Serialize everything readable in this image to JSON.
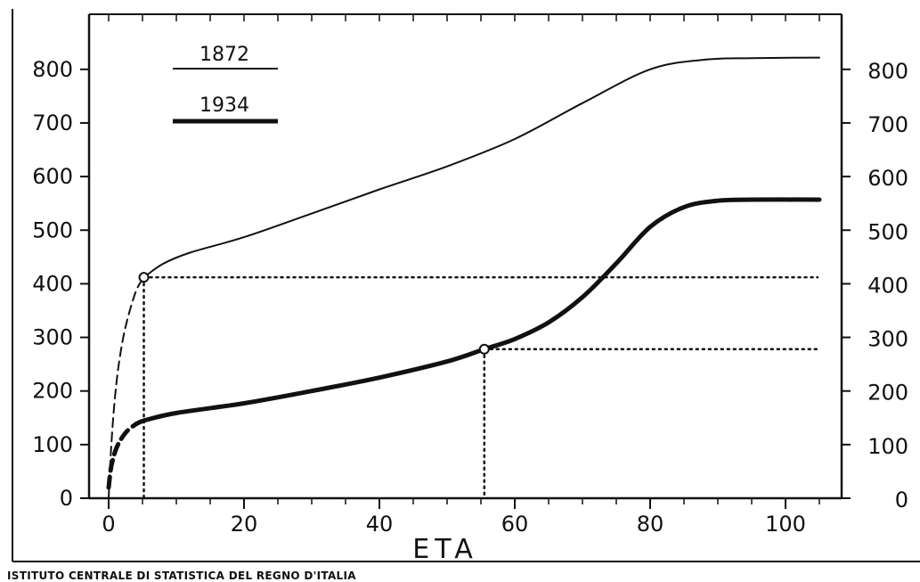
{
  "footer": {
    "credit": "ISTITUTO CENTRALE DI STATISTICA DEL REGNO D'ITALIA"
  },
  "chart_data": {
    "type": "line",
    "title": "",
    "xlabel": "ETA",
    "ylabel": "",
    "xlim": [
      0,
      105
    ],
    "ylim": [
      0,
      850
    ],
    "x_ticks": [
      0,
      20,
      40,
      60,
      80,
      100
    ],
    "y_ticks": [
      0,
      100,
      200,
      300,
      400,
      500,
      600,
      700,
      800
    ],
    "secondary_y_axis": true,
    "grid": false,
    "legend_position": "top-left",
    "colors": {
      "ink": "#111111",
      "paper": "#ffffff"
    },
    "series": [
      {
        "name": "1872",
        "line_weight": "thin",
        "dashed_segment": [
          {
            "x": 0,
            "y": 0
          },
          {
            "x": 0.3,
            "y": 80
          },
          {
            "x": 0.8,
            "y": 170
          },
          {
            "x": 1.5,
            "y": 250
          },
          {
            "x": 2.5,
            "y": 320
          },
          {
            "x": 4,
            "y": 385
          },
          {
            "x": 5.2,
            "y": 412
          }
        ],
        "solid_segment": [
          {
            "x": 5.2,
            "y": 412
          },
          {
            "x": 8,
            "y": 437
          },
          {
            "x": 12,
            "y": 458
          },
          {
            "x": 20,
            "y": 487
          },
          {
            "x": 30,
            "y": 531
          },
          {
            "x": 40,
            "y": 576
          },
          {
            "x": 50,
            "y": 619
          },
          {
            "x": 60,
            "y": 670
          },
          {
            "x": 70,
            "y": 737
          },
          {
            "x": 80,
            "y": 800
          },
          {
            "x": 88,
            "y": 818
          },
          {
            "x": 95,
            "y": 821
          },
          {
            "x": 105,
            "y": 822
          }
        ],
        "marker": {
          "x": 5.2,
          "y": 412
        },
        "reference_line_y": 412
      },
      {
        "name": "1934",
        "line_weight": "thick",
        "dashed_segment": [
          {
            "x": 0,
            "y": 20
          },
          {
            "x": 0.4,
            "y": 60
          },
          {
            "x": 1.2,
            "y": 95
          },
          {
            "x": 2.5,
            "y": 122
          },
          {
            "x": 4,
            "y": 138
          },
          {
            "x": 5.2,
            "y": 145
          }
        ],
        "solid_segment": [
          {
            "x": 5.2,
            "y": 145
          },
          {
            "x": 10,
            "y": 159
          },
          {
            "x": 20,
            "y": 177
          },
          {
            "x": 30,
            "y": 200
          },
          {
            "x": 40,
            "y": 225
          },
          {
            "x": 50,
            "y": 255
          },
          {
            "x": 55.5,
            "y": 278
          },
          {
            "x": 60,
            "y": 297
          },
          {
            "x": 65,
            "y": 328
          },
          {
            "x": 70,
            "y": 375
          },
          {
            "x": 75,
            "y": 438
          },
          {
            "x": 80,
            "y": 506
          },
          {
            "x": 85,
            "y": 543
          },
          {
            "x": 90,
            "y": 555
          },
          {
            "x": 95,
            "y": 557
          },
          {
            "x": 105,
            "y": 557
          }
        ],
        "marker": {
          "x": 55.5,
          "y": 278
        },
        "reference_line_y": 278
      }
    ]
  }
}
